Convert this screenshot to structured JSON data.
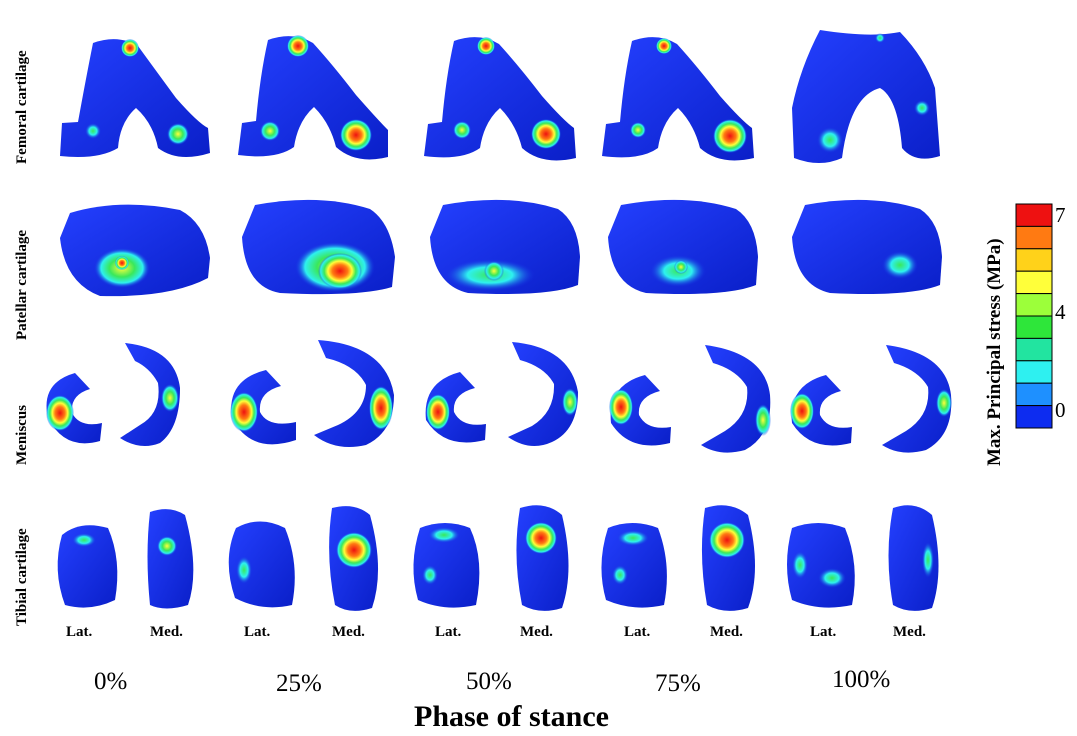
{
  "row_labels": [
    "Femoral cartilage",
    "Patellar cartilage",
    "Meniscus",
    "Tibial cartilage"
  ],
  "side_labels": [
    "Lat.",
    "Med.",
    "Lat.",
    "Med.",
    "Lat.",
    "Med.",
    "Lat.",
    "Med.",
    "Lat.",
    "Med."
  ],
  "phases": [
    "0%",
    "25%",
    "50%",
    "75%",
    "100%"
  ],
  "x_title": "Phase of stance",
  "colorbar": {
    "title": "Max. Principal stress (MPa)",
    "ticks": [
      "7",
      "4",
      "0"
    ],
    "colors": [
      "#ee1111",
      "#ff7a12",
      "#ffd21a",
      "#ffff3a",
      "#9cff3a",
      "#2ee63a",
      "#22e4a0",
      "#2ef0f0",
      "#1e90ff",
      "#0d2cf0"
    ]
  },
  "colors": {
    "base": "#1530e6",
    "contact": [
      "#1e90ff",
      "#2ef0f0",
      "#3ae85a",
      "#ffff3a",
      "#ff7a12",
      "#ee1111"
    ]
  }
}
